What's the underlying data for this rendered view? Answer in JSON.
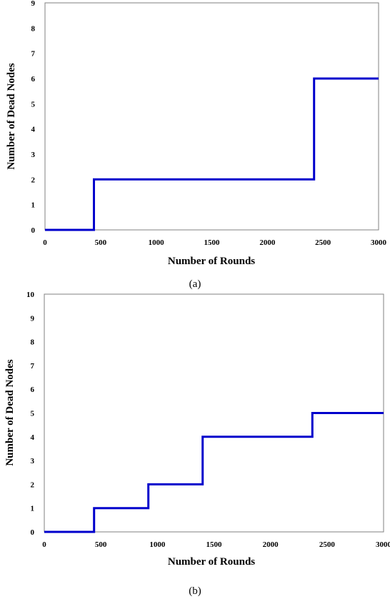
{
  "chart_data": [
    {
      "type": "line",
      "line_style": "step",
      "caption": "(a)",
      "xlabel": "Number of Rounds",
      "ylabel": "Number of Dead Nodes",
      "xlim": [
        0,
        3000
      ],
      "ylim": [
        0,
        9
      ],
      "x_ticks": [
        "0",
        "500",
        "1000",
        "1500",
        "2000",
        "2500",
        "3000"
      ],
      "y_ticks": [
        "0",
        "1",
        "2",
        "3",
        "4",
        "5",
        "6",
        "7",
        "8",
        "9"
      ],
      "grid": false,
      "color": "#0000cc",
      "series": [
        {
          "x": [
            0,
            440,
            440,
            2420,
            2420,
            3000
          ],
          "y": [
            0,
            0,
            2,
            2,
            6,
            6
          ]
        }
      ]
    },
    {
      "type": "line",
      "line_style": "step",
      "caption": "(b)",
      "xlabel": "Number of Rounds",
      "ylabel": "Number of Dead Nodes",
      "xlim": [
        0,
        3000
      ],
      "ylim": [
        0,
        10
      ],
      "x_ticks": [
        "0",
        "500",
        "1000",
        "1500",
        "2000",
        "2500",
        "3000"
      ],
      "y_ticks": [
        "0",
        "1",
        "2",
        "3",
        "4",
        "5",
        "6",
        "7",
        "8",
        "9",
        "10"
      ],
      "grid": false,
      "color": "#0000cc",
      "series": [
        {
          "x": [
            0,
            440,
            440,
            920,
            920,
            1400,
            1400,
            2370,
            2370,
            3000
          ],
          "y": [
            0,
            0,
            1,
            1,
            2,
            2,
            4,
            4,
            5,
            5
          ]
        }
      ]
    }
  ]
}
